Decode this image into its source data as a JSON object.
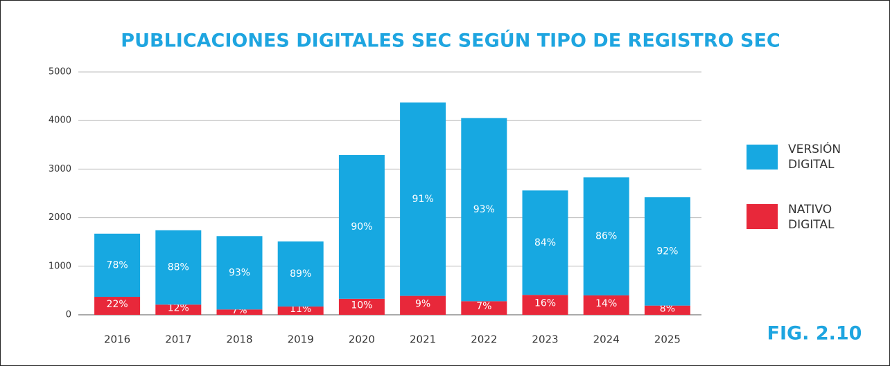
{
  "chart_data": {
    "type": "stacked_bar",
    "title": "PUBLICACIONES DIGITALES SEC SEGÚN TIPO DE REGISTRO SEC",
    "figure_label": "FIG. 2.10",
    "categories": [
      "2016",
      "2017",
      "2018",
      "2019",
      "2020",
      "2021",
      "2022",
      "2023",
      "2024",
      "2025"
    ],
    "series": [
      {
        "name": "NATIVO DIGITAL",
        "color": "#e8283a",
        "values": [
          370,
          210,
          110,
          170,
          330,
          390,
          280,
          410,
          400,
          190
        ],
        "share_labels": [
          "22%",
          "12%",
          "7%",
          "11%",
          "10%",
          "9%",
          "7%",
          "16%",
          "14%",
          "8%"
        ]
      },
      {
        "name": "VERSIÓN DIGITAL",
        "color": "#17a8e1",
        "values": [
          1300,
          1530,
          1510,
          1340,
          2960,
          3980,
          3770,
          2150,
          2430,
          2230
        ],
        "share_labels": [
          "78%",
          "88%",
          "93%",
          "89%",
          "90%",
          "91%",
          "93%",
          "84%",
          "86%",
          "92%"
        ]
      }
    ],
    "ylim": [
      0,
      5000
    ],
    "yticks": [
      0,
      1000,
      2000,
      3000,
      4000,
      5000
    ],
    "grid": true
  }
}
